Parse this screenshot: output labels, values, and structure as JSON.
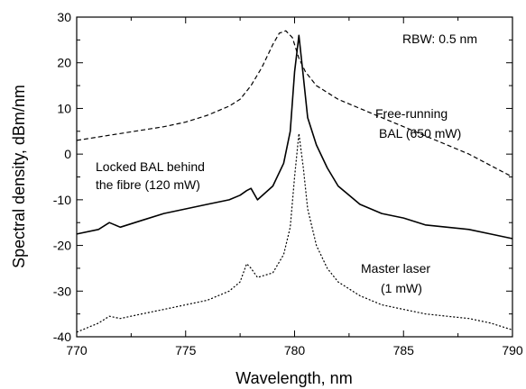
{
  "chart_data": {
    "type": "line",
    "title": "",
    "xlabel": "Wavelength, nm",
    "ylabel": "Spectral density, dBm/nm",
    "xlim": [
      770,
      790
    ],
    "ylim": [
      -40,
      30
    ],
    "x_ticks": [
      "770",
      "775",
      "780",
      "785",
      "790"
    ],
    "y_ticks": [
      "-40",
      "-30",
      "-20",
      "-10",
      "0",
      "10",
      "20",
      "30"
    ],
    "grid": false,
    "annotations": [
      {
        "name": "rbw",
        "lines": [
          "RBW: 0.5 nm"
        ]
      },
      {
        "name": "free-running",
        "lines": [
          "Free-running",
          "BAL (650 mW)"
        ]
      },
      {
        "name": "locked",
        "lines": [
          "Locked BAL behind",
          "the fibre (120 mW)"
        ]
      },
      {
        "name": "master",
        "lines": [
          "Master laser",
          "(1 mW)"
        ]
      }
    ],
    "series": [
      {
        "key": "free-running",
        "style": "dashed",
        "x": [
          770,
          772,
          774,
          775,
          776,
          777,
          777.5,
          778,
          778.5,
          779,
          779.3,
          779.6,
          779.9,
          780.2,
          780.5,
          781,
          781.5,
          782,
          783,
          784,
          785,
          786,
          787,
          788,
          789,
          790
        ],
        "y": [
          3,
          4.5,
          6,
          7,
          8.5,
          10.5,
          12,
          15,
          19,
          24,
          26.5,
          27,
          25.5,
          21,
          18,
          15,
          13.5,
          12,
          10,
          8,
          6,
          4,
          2,
          0,
          -2.5,
          -5
        ]
      },
      {
        "key": "locked",
        "style": "solid",
        "x": [
          770,
          771,
          771.5,
          772,
          773,
          774,
          775,
          776,
          777,
          777.5,
          777.8,
          778,
          778.3,
          779,
          779.5,
          779.8,
          780,
          780.2,
          780.4,
          780.6,
          781,
          781.5,
          782,
          783,
          784,
          785,
          786,
          787,
          788,
          789,
          790
        ],
        "y": [
          -17.5,
          -16.5,
          -15,
          -16,
          -14.5,
          -13,
          -12,
          -11,
          -10,
          -9,
          -8,
          -7.5,
          -10,
          -7,
          -2,
          5,
          18,
          26,
          17,
          8,
          2,
          -3,
          -7,
          -11,
          -13,
          -14,
          -15.5,
          -16,
          -16.5,
          -17.5,
          -18.5
        ]
      },
      {
        "key": "master",
        "style": "dotted",
        "x": [
          770,
          771,
          771.5,
          772,
          773,
          774,
          775,
          776,
          777,
          777.5,
          777.8,
          778,
          778.3,
          779,
          779.5,
          779.8,
          780,
          780.2,
          780.4,
          780.6,
          781,
          781.5,
          782,
          783,
          784,
          785,
          786,
          787,
          788,
          789,
          790
        ],
        "y": [
          -39,
          -37,
          -35.5,
          -36,
          -35,
          -34,
          -33,
          -32,
          -30,
          -28,
          -24,
          -25,
          -27,
          -26,
          -22,
          -16,
          -5,
          4.5,
          -3,
          -12,
          -20,
          -25,
          -28,
          -31,
          -33,
          -34,
          -35,
          -35.5,
          -36,
          -37,
          -38.5
        ]
      }
    ]
  }
}
